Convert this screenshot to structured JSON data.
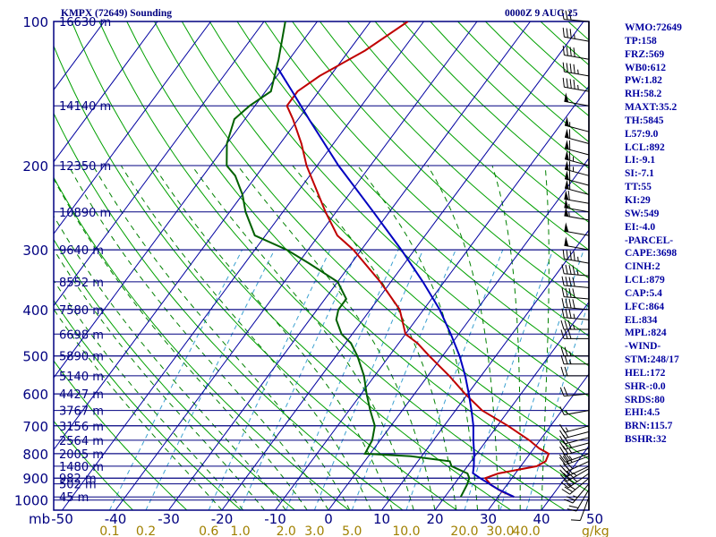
{
  "header": {
    "station": "KMPX (72649) Sounding",
    "valid": "0000Z  9 AUG 25"
  },
  "stats": [
    "WMO:72649",
    "TP:158",
    "FRZ:569",
    "WB0:612",
    "PW:1.82",
    "RH:58.2",
    "MAXT:35.2",
    "TH:5845",
    "L57:9.0",
    "LCL:892",
    "LI:-9.1",
    "SI:-7.1",
    "TT:55",
    "KI:29",
    "SW:549",
    "EI:-4.0",
    "-PARCEL-",
    "CAPE:3698",
    "CINH:2",
    "LCL:879",
    "CAP:5.4",
    "LFC:864",
    "EL:834",
    "MPL:824",
    "-WIND-",
    "STM:248/17",
    "HEL:172",
    "SHR-:0.0",
    "SRDS:80",
    "EHI:4.5",
    "BRN:115.7",
    "BSHR:32"
  ],
  "colors": {
    "background": "#ffffff",
    "isobar": "#000080",
    "isotherm": "#0000a0",
    "dry_adiabat": "#00a000",
    "moist_adiabat": "#008000",
    "mixing_ratio": "#3aa0d0",
    "temperature": "#c00000",
    "dewpoint": "#006000",
    "parcel": "#0000c0",
    "label_text": "#000080",
    "mixing_label": "#a08000",
    "wind_barbs": "#000000"
  },
  "chart_data": {
    "type": "line",
    "title": "KMPX (72649) Sounding",
    "subtitle": "0000Z  9 AUG 25",
    "xlabel": "",
    "ylabel": "mb",
    "x_unit_label": "g/kg",
    "x_ticks": [
      -50,
      -40,
      -30,
      -20,
      -10,
      0,
      10,
      20,
      30,
      40,
      50
    ],
    "xlim": [
      -50,
      50
    ],
    "pressure_levels": [
      100,
      200,
      300,
      400,
      500,
      600,
      700,
      800,
      900,
      1000
    ],
    "height_labels": [
      {
        "p": 100,
        "h": "16630 m"
      },
      {
        "p": 150,
        "h": "14140 m"
      },
      {
        "p": 200,
        "h": "12350 m"
      },
      {
        "p": 250,
        "h": "10890 m"
      },
      {
        "p": 300,
        "h": "9640 m"
      },
      {
        "p": 350,
        "h": "8552 m"
      },
      {
        "p": 400,
        "h": "7580 m"
      },
      {
        "p": 450,
        "h": "6698 m"
      },
      {
        "p": 500,
        "h": "5890 m"
      },
      {
        "p": 550,
        "h": "5140 m"
      },
      {
        "p": 600,
        "h": "4427 m"
      },
      {
        "p": 650,
        "h": "3767 m"
      },
      {
        "p": 700,
        "h": "3156 m"
      },
      {
        "p": 750,
        "h": "2564 m"
      },
      {
        "p": 800,
        "h": "2005 m"
      },
      {
        "p": 850,
        "h": "1480 m"
      },
      {
        "p": 900,
        "h": "982 m"
      },
      {
        "p": 925,
        "h": "502 m"
      },
      {
        "p": 985,
        "h": "45 m"
      }
    ],
    "mixing_ratio_labels": [
      "0.1",
      "0.2",
      "0.6",
      "1.0",
      "2.0",
      "3.0",
      "5.0",
      "10.0",
      "20.0",
      "30.0",
      "40.0"
    ],
    "mixing_ratios": [
      0.1,
      0.2,
      0.6,
      1.0,
      2.0,
      3.0,
      5.0,
      10.0,
      20.0,
      30.0,
      40.0
    ],
    "series": [
      {
        "id": "temperature",
        "points": [
          {
            "p": 985,
            "t": 33.0
          },
          {
            "p": 960,
            "t": 30.0
          },
          {
            "p": 930,
            "t": 27.0
          },
          {
            "p": 900,
            "t": 25.0
          },
          {
            "p": 880,
            "t": 26.8
          },
          {
            "p": 850,
            "t": 33.0
          },
          {
            "p": 830,
            "t": 34.0
          },
          {
            "p": 800,
            "t": 33.5
          },
          {
            "p": 780,
            "t": 31.0
          },
          {
            "p": 750,
            "t": 28.0
          },
          {
            "p": 700,
            "t": 22.0
          },
          {
            "p": 650,
            "t": 15.0
          },
          {
            "p": 600,
            "t": 9.5
          },
          {
            "p": 550,
            "t": 4.0
          },
          {
            "p": 500,
            "t": -2.5
          },
          {
            "p": 470,
            "t": -6.5
          },
          {
            "p": 450,
            "t": -10.0
          },
          {
            "p": 400,
            "t": -14.5
          },
          {
            "p": 350,
            "t": -22.0
          },
          {
            "p": 300,
            "t": -31.5
          },
          {
            "p": 280,
            "t": -36.5
          },
          {
            "p": 250,
            "t": -42.0
          },
          {
            "p": 200,
            "t": -52.0
          },
          {
            "p": 180,
            "t": -56.0
          },
          {
            "p": 160,
            "t": -61.0
          },
          {
            "p": 150,
            "t": -64.0
          },
          {
            "p": 140,
            "t": -64.0
          },
          {
            "p": 130,
            "t": -62.0
          },
          {
            "p": 115,
            "t": -57.0
          },
          {
            "p": 100,
            "t": -53.0
          }
        ]
      },
      {
        "id": "dewpoint",
        "points": [
          {
            "p": 985,
            "t": 23.0
          },
          {
            "p": 930,
            "t": 22.5
          },
          {
            "p": 900,
            "t": 22.0
          },
          {
            "p": 880,
            "t": 21.0
          },
          {
            "p": 850,
            "t": 17.0
          },
          {
            "p": 830,
            "t": 16.0
          },
          {
            "p": 810,
            "t": 8.0
          },
          {
            "p": 800,
            "t": -1.0
          },
          {
            "p": 750,
            "t": -1.5
          },
          {
            "p": 700,
            "t": -3.0
          },
          {
            "p": 650,
            "t": -6.0
          },
          {
            "p": 600,
            "t": -9.0
          },
          {
            "p": 550,
            "t": -12.0
          },
          {
            "p": 500,
            "t": -16.0
          },
          {
            "p": 470,
            "t": -19.0
          },
          {
            "p": 450,
            "t": -22.0
          },
          {
            "p": 420,
            "t": -25.0
          },
          {
            "p": 400,
            "t": -26.0
          },
          {
            "p": 380,
            "t": -26.0
          },
          {
            "p": 350,
            "t": -30.0
          },
          {
            "p": 320,
            "t": -38.0
          },
          {
            "p": 300,
            "t": -44.0
          },
          {
            "p": 280,
            "t": -52.0
          },
          {
            "p": 250,
            "t": -57.0
          },
          {
            "p": 230,
            "t": -60.0
          },
          {
            "p": 210,
            "t": -64.0
          },
          {
            "p": 200,
            "t": -67.0
          },
          {
            "p": 180,
            "t": -70.0
          },
          {
            "p": 160,
            "t": -72.0
          },
          {
            "p": 150,
            "t": -71.0
          },
          {
            "p": 140,
            "t": -69.0
          },
          {
            "p": 120,
            "t": -72.0
          },
          {
            "p": 100,
            "t": -76.0
          }
        ]
      },
      {
        "id": "parcel",
        "points": [
          {
            "p": 985,
            "t": 33.0
          },
          {
            "p": 950,
            "t": 29.0
          },
          {
            "p": 900,
            "t": 24.0
          },
          {
            "p": 879,
            "t": 22.0
          },
          {
            "p": 850,
            "t": 21.2
          },
          {
            "p": 800,
            "t": 19.5
          },
          {
            "p": 750,
            "t": 17.5
          },
          {
            "p": 700,
            "t": 15.5
          },
          {
            "p": 650,
            "t": 13.0
          },
          {
            "p": 600,
            "t": 10.2
          },
          {
            "p": 550,
            "t": 7.0
          },
          {
            "p": 500,
            "t": 3.2
          },
          {
            "p": 450,
            "t": -1.5
          },
          {
            "p": 400,
            "t": -7.0
          },
          {
            "p": 350,
            "t": -14.0
          },
          {
            "p": 300,
            "t": -22.5
          },
          {
            "p": 250,
            "t": -33.0
          },
          {
            "p": 200,
            "t": -46.0
          },
          {
            "p": 160,
            "t": -58.0
          },
          {
            "p": 140,
            "t": -65.0
          },
          {
            "p": 125,
            "t": -71.0
          }
        ]
      }
    ],
    "wind_barbs": [
      {
        "p": 985,
        "dir": 200,
        "spd": 10
      },
      {
        "p": 950,
        "dir": 210,
        "spd": 20
      },
      {
        "p": 925,
        "dir": 220,
        "spd": 25
      },
      {
        "p": 900,
        "dir": 230,
        "spd": 30
      },
      {
        "p": 880,
        "dir": 235,
        "spd": 35
      },
      {
        "p": 860,
        "dir": 240,
        "spd": 35
      },
      {
        "p": 850,
        "dir": 245,
        "spd": 30
      },
      {
        "p": 830,
        "dir": 245,
        "spd": 30
      },
      {
        "p": 810,
        "dir": 250,
        "spd": 30
      },
      {
        "p": 800,
        "dir": 250,
        "spd": 25
      },
      {
        "p": 780,
        "dir": 255,
        "spd": 25
      },
      {
        "p": 760,
        "dir": 255,
        "spd": 25
      },
      {
        "p": 740,
        "dir": 255,
        "spd": 20
      },
      {
        "p": 720,
        "dir": 255,
        "spd": 20
      },
      {
        "p": 700,
        "dir": 255,
        "spd": 15
      },
      {
        "p": 650,
        "dir": 260,
        "spd": 15
      },
      {
        "p": 600,
        "dir": 265,
        "spd": 20
      },
      {
        "p": 550,
        "dir": 270,
        "spd": 20
      },
      {
        "p": 520,
        "dir": 270,
        "spd": 25
      },
      {
        "p": 500,
        "dir": 270,
        "spd": 25
      },
      {
        "p": 460,
        "dir": 270,
        "spd": 30
      },
      {
        "p": 440,
        "dir": 270,
        "spd": 35
      },
      {
        "p": 420,
        "dir": 275,
        "spd": 35
      },
      {
        "p": 400,
        "dir": 275,
        "spd": 40
      },
      {
        "p": 380,
        "dir": 275,
        "spd": 40
      },
      {
        "p": 360,
        "dir": 275,
        "spd": 40
      },
      {
        "p": 340,
        "dir": 275,
        "spd": 45
      },
      {
        "p": 320,
        "dir": 280,
        "spd": 45
      },
      {
        "p": 300,
        "dir": 280,
        "spd": 50
      },
      {
        "p": 280,
        "dir": 280,
        "spd": 50
      },
      {
        "p": 260,
        "dir": 280,
        "spd": 55
      },
      {
        "p": 250,
        "dir": 280,
        "spd": 55
      },
      {
        "p": 240,
        "dir": 280,
        "spd": 60
      },
      {
        "p": 230,
        "dir": 285,
        "spd": 60
      },
      {
        "p": 220,
        "dir": 285,
        "spd": 60
      },
      {
        "p": 210,
        "dir": 285,
        "spd": 65
      },
      {
        "p": 200,
        "dir": 285,
        "spd": 65
      },
      {
        "p": 190,
        "dir": 285,
        "spd": 60
      },
      {
        "p": 180,
        "dir": 285,
        "spd": 60
      },
      {
        "p": 170,
        "dir": 285,
        "spd": 55
      },
      {
        "p": 150,
        "dir": 280,
        "spd": 50
      },
      {
        "p": 140,
        "dir": 280,
        "spd": 45
      },
      {
        "p": 130,
        "dir": 280,
        "spd": 45
      },
      {
        "p": 120,
        "dir": 280,
        "spd": 40
      },
      {
        "p": 110,
        "dir": 280,
        "spd": 35
      },
      {
        "p": 100,
        "dir": 275,
        "spd": 30
      }
    ]
  }
}
